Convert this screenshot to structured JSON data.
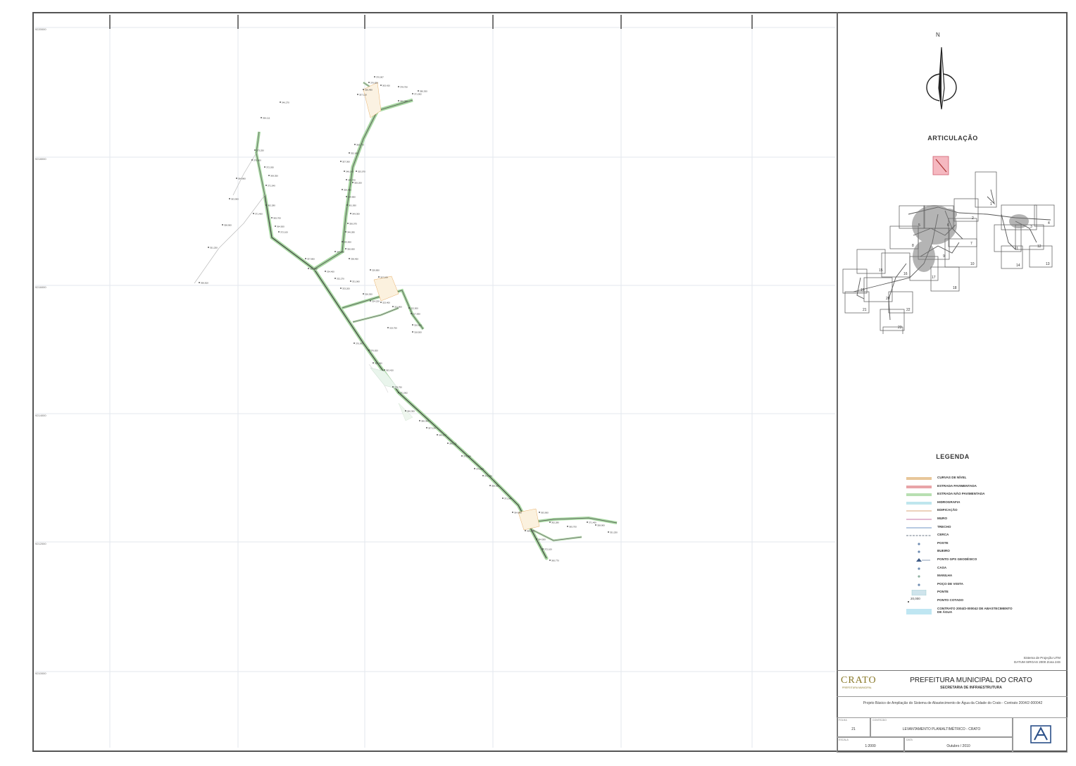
{
  "map": {
    "grid_labels_left": [
      "9220000",
      "9218000",
      "9216000",
      "9214000",
      "9212000",
      "9210000"
    ],
    "point_labels": [
      "370,007",
      "376,820",
      "356,490",
      "363,420",
      "378,750",
      "371,562",
      "360,360",
      "380,300",
      "357,120",
      "346,270",
      "366,111",
      "373,250",
      "379,600",
      "372,030",
      "369,350",
      "371,540",
      "364,860",
      "363,900",
      "362,280",
      "365,700",
      "371,400",
      "358,900",
      "351,250",
      "366,810",
      "364,500",
      "372,100",
      "360,770",
      "352,000",
      "357,360",
      "348,140",
      "345,700",
      "353,070",
      "355,200",
      "359,400",
      "354,850",
      "361,050",
      "349,300",
      "356,070",
      "346,280",
      "343,900",
      "347,280",
      "350,650",
      "338,450",
      "337,800",
      "335,000",
      "334,400",
      "332,270",
      "333,200",
      "331,060",
      "329,850",
      "327,100",
      "326,300",
      "324,220",
      "323,400",
      "321,800",
      "322,500",
      "320,900",
      "319,750",
      "318,500",
      "317,830"
    ]
  },
  "panel": {
    "north_letter": "N",
    "articulacao_title": "ARTICULAÇÃO",
    "articulacao_numbers": [
      "1",
      "2",
      "3",
      "4",
      "5",
      "6",
      "7",
      "8",
      "9",
      "10",
      "11",
      "12",
      "13",
      "14",
      "15",
      "16",
      "17",
      "18",
      "19",
      "20",
      "21",
      "22",
      "23",
      "24"
    ],
    "legend_title": "LEGENDA",
    "legend_items": [
      {
        "label": "CURVAS DE NÍVEL",
        "color": "#e8c79a",
        "style": "band"
      },
      {
        "label": "ESTRADA PAVIMENTADA",
        "color": "#e8a4a8",
        "style": "band"
      },
      {
        "label": "ESTRADA NÃO PAVIMENTADA",
        "color": "#b8dfb2",
        "style": "band"
      },
      {
        "label": "HIDROGRAFIA",
        "color": "#bfe6ee",
        "style": "band"
      },
      {
        "label": "EDIFICAÇÃO",
        "color": "#e6c4a6",
        "style": "line"
      },
      {
        "label": "MURO",
        "color": "#d9a4c6",
        "style": "line"
      },
      {
        "label": "TRECHO",
        "color": "#9fb8d9",
        "style": "line"
      },
      {
        "label": "CERCA",
        "color": "#6d7a8a",
        "style": "dashed"
      },
      {
        "label": "POSTE",
        "color": "#6d8bb0",
        "style": "dot"
      },
      {
        "label": "BUEIRO",
        "color": "#6d8bb0",
        "style": "dot"
      },
      {
        "label": "PONTO GPS GEODÉSICO",
        "color": "#3d5a86",
        "style": "tri"
      },
      {
        "label": "CASA",
        "color": "#6d8bb0",
        "style": "dot"
      },
      {
        "label": "MANILHA",
        "color": "#8fb0a0",
        "style": "dot"
      },
      {
        "label": "POÇO DE VISITA",
        "color": "#6d8bb0",
        "style": "dot"
      },
      {
        "label": "PONTE",
        "color": "#cfe4ec",
        "style": "box"
      },
      {
        "label": "PONTO COTADO",
        "color": "#333333",
        "style": "cota",
        "value": "20,000"
      },
      {
        "label": "CONTRATO 2004/2-000042 DE ABASTECIMENTO DE ÁGUA",
        "color": "#bfe6f2",
        "style": "fill"
      }
    ],
    "projection_note": "Sistema de Projeção UTM\nDATUM SIRGAS 2000 Zona 24S"
  },
  "title_block": {
    "logo_text": "CRATO",
    "logo_sub": "PREFEITURA MUNICIPAL",
    "prefeitura": "PREFEITURA MUNICIPAL DO CRATO",
    "secretaria": "SECRETARIA DE INFRAESTRUTURA",
    "project": "Projeto Básico de Ampliação do Sistema de Abastecimento de Água da Cidade do Crato - Contrato 2004/2-000042",
    "sheet_caption": "FOLHA",
    "sheet_number": "21",
    "content_caption": "CONTEÚDO",
    "content": "LEVANTAMENTO PLANIALTIMÉTRICO - CRATO",
    "scale_caption": "ESCALA",
    "scale": "1:2000",
    "date_caption": "DATA",
    "date": "Outubro / 2010"
  },
  "colors": {
    "road_green": "#a6d7a0",
    "road_dark": "#444444",
    "orange": "#e8b06a",
    "grid": "#e3e7ee"
  }
}
